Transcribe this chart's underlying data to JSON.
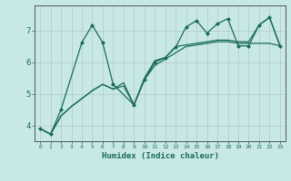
{
  "title": "",
  "xlabel": "Humidex (Indice chaleur)",
  "bg_color": "#c8e8e8",
  "grid_color": "#b0c8c8",
  "line_color": "#1a6b5a",
  "xlim": [
    -0.5,
    23.5
  ],
  "ylim": [
    3.5,
    7.8
  ],
  "yticks": [
    4,
    5,
    6,
    7
  ],
  "xticks": [
    0,
    1,
    2,
    3,
    4,
    5,
    6,
    7,
    8,
    9,
    10,
    11,
    12,
    13,
    14,
    15,
    16,
    17,
    18,
    19,
    20,
    21,
    22,
    23
  ],
  "series1_x": [
    0,
    1,
    2,
    4,
    5,
    6,
    7,
    9,
    10,
    11,
    12,
    13,
    14,
    15,
    16,
    17,
    18,
    19,
    20,
    21,
    22,
    23
  ],
  "series1_y": [
    3.9,
    3.72,
    4.5,
    6.62,
    7.18,
    6.62,
    5.3,
    4.65,
    5.45,
    6.0,
    6.15,
    6.48,
    7.12,
    7.32,
    6.92,
    7.22,
    7.38,
    6.52,
    6.52,
    7.18,
    7.42,
    6.52
  ],
  "series2_x": [
    0,
    1,
    2,
    3,
    4,
    5,
    6,
    7,
    8,
    9,
    10,
    11,
    12,
    13,
    14,
    15,
    16,
    17,
    18,
    19,
    20,
    21,
    22,
    23
  ],
  "series2_y": [
    3.9,
    3.72,
    4.3,
    4.6,
    4.85,
    5.1,
    5.3,
    5.15,
    5.25,
    4.65,
    5.45,
    5.9,
    6.1,
    6.3,
    6.5,
    6.55,
    6.6,
    6.65,
    6.65,
    6.6,
    6.6,
    6.6,
    6.6,
    6.52
  ],
  "series3_x": [
    0,
    1,
    2,
    3,
    4,
    5,
    6,
    7,
    8,
    9,
    10,
    11,
    12,
    13,
    14,
    15,
    16,
    17,
    18,
    19,
    20,
    21,
    22,
    23
  ],
  "series3_y": [
    3.9,
    3.72,
    4.3,
    4.6,
    4.85,
    5.1,
    5.3,
    5.15,
    5.35,
    4.65,
    5.5,
    6.05,
    6.15,
    6.5,
    6.55,
    6.6,
    6.65,
    6.7,
    6.7,
    6.65,
    6.65,
    7.18,
    7.42,
    6.52
  ]
}
